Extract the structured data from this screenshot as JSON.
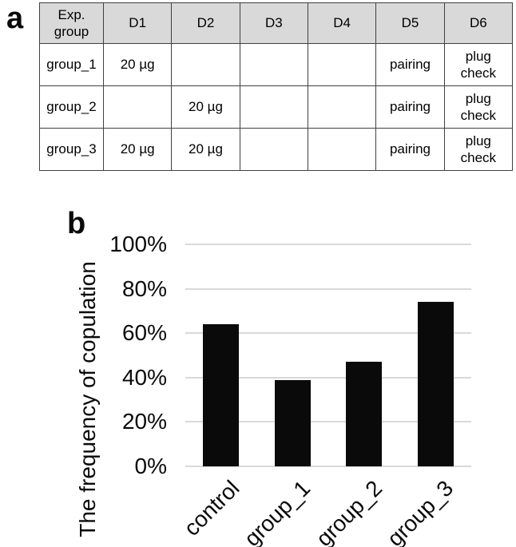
{
  "panels": {
    "a": {
      "label": "a"
    },
    "b": {
      "label": "b"
    }
  },
  "table": {
    "columns": [
      "Exp.\ngroup",
      "D1",
      "D2",
      "D3",
      "D4",
      "D5",
      "D6"
    ],
    "rows": [
      {
        "cells": [
          "group_1",
          "20 µg",
          "",
          "",
          "",
          "pairing",
          "plug\ncheck"
        ]
      },
      {
        "cells": [
          "group_2",
          "",
          "20 µg",
          "",
          "",
          "pairing",
          "plug\ncheck"
        ]
      },
      {
        "cells": [
          "group_3",
          "20 µg",
          "20 µg",
          "",
          "",
          "pairing",
          "plug\ncheck"
        ]
      }
    ]
  },
  "chart_data": {
    "type": "bar",
    "categories": [
      "control",
      "group_1",
      "group_2",
      "group_3"
    ],
    "values": [
      64,
      39,
      47,
      74
    ],
    "unit": "%",
    "title": "",
    "xlabel": "",
    "ylabel": "The frequency of copulation",
    "ylim": [
      0,
      100
    ],
    "ytick_step": 20,
    "ytick_labels": [
      "0%",
      "20%",
      "40%",
      "60%",
      "80%",
      "100%"
    ],
    "grid": "horizontal",
    "legend": "none",
    "colors": {
      "bar": "#0a0a0a",
      "gridline": "#d9d9d9",
      "table_header_bg": "#d9d9d9",
      "table_border": "#404040",
      "text": "#000000"
    }
  }
}
